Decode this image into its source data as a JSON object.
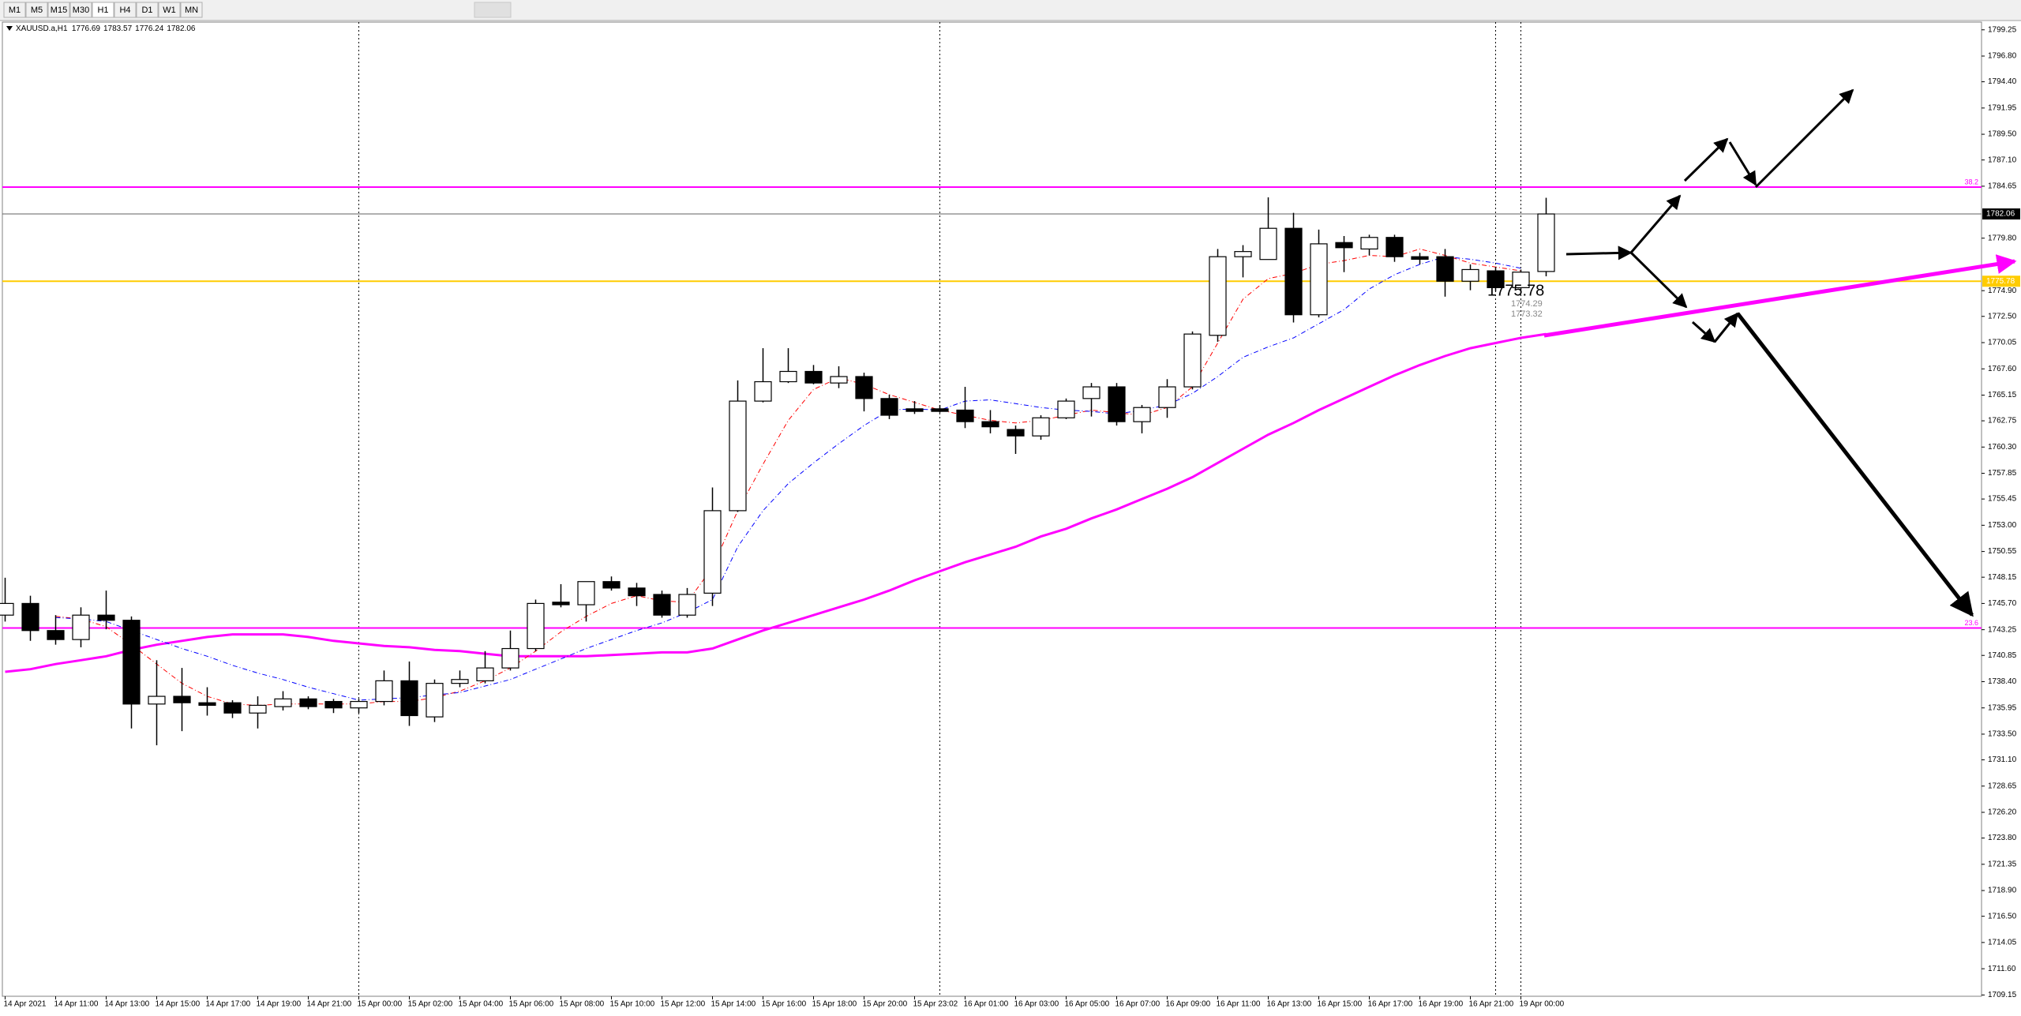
{
  "toolbar": {
    "timeframes": [
      "M1",
      "M5",
      "M15",
      "M30",
      "H1",
      "H4",
      "D1",
      "W1",
      "MN"
    ],
    "active": 4
  },
  "chart_data": {
    "type": "candlestick",
    "symbol": "XAUUSD.a,H1",
    "categories": [
      "14 Apr 2021",
      null,
      "14 Apr 11:00",
      null,
      "14 Apr 13:00",
      null,
      "14 Apr 15:00",
      null,
      "14 Apr 17:00",
      null,
      "14 Apr 19:00",
      null,
      "14 Apr 21:00",
      null,
      "15 Apr 00:00",
      null,
      "15 Apr 02:00",
      null,
      "15 Apr 04:00",
      null,
      "15 Apr 06:00",
      null,
      "15 Apr 08:00",
      null,
      "15 Apr 10:00",
      null,
      "15 Apr 12:00",
      null,
      "15 Apr 14:00",
      null,
      "15 Apr 16:00",
      null,
      "15 Apr 18:00",
      null,
      "15 Apr 20:00",
      null,
      "15 Apr 23:02",
      null,
      "16 Apr 01:00",
      null,
      "16 Apr 03:00",
      null,
      "16 Apr 05:00",
      null,
      "16 Apr 07:00",
      null,
      "16 Apr 09:00",
      null,
      "16 Apr 11:00",
      null,
      "16 Apr 13:00",
      null,
      "16 Apr 15:00",
      null,
      "16 Apr 17:00",
      null,
      "16 Apr 19:00",
      null,
      "16 Apr 21:00",
      null,
      "19 Apr 00:00",
      null
    ],
    "open": [
      1744.61,
      1745.7,
      1743.17,
      1742.33,
      1744.61,
      1744.13,
      1736.31,
      1737.03,
      1736.43,
      1736.43,
      1735.47,
      1736.07,
      1736.79,
      1736.55,
      1735.95,
      1736.55,
      1738.48,
      1735.11,
      1738.24,
      1738.48,
      1739.68,
      1741.49,
      1745.82,
      1745.58,
      1747.74,
      1747.14,
      1746.54,
      1744.61,
      1746.66,
      1754.36,
      1764.59,
      1766.4,
      1767.36,
      1766.28,
      1766.88,
      1764.83,
      1763.87,
      1763.87,
      1763.75,
      1762.67,
      1761.94,
      1761.34,
      1763.03,
      1764.83,
      1765.92,
      1762.67,
      1763.99,
      1765.92,
      1770.73,
      1778.07,
      1777.81,
      1780.72,
      1772.65,
      1779.39,
      1778.79,
      1779.87,
      1778.07,
      1778.07,
      1775.78,
      1776.75,
      1775.18,
      1776.69
    ],
    "high": [
      1748.1,
      1746.42,
      1744.61,
      1745.34,
      1746.9,
      1744.49,
      1740.4,
      1739.68,
      1737.88,
      1736.67,
      1737.03,
      1737.51,
      1737.03,
      1736.79,
      1736.79,
      1739.44,
      1740.28,
      1738.6,
      1739.44,
      1741.25,
      1743.17,
      1746.06,
      1747.5,
      1747.74,
      1748.22,
      1747.62,
      1746.9,
      1747.14,
      1756.53,
      1766.52,
      1769.53,
      1769.53,
      1767.96,
      1767.84,
      1767.24,
      1765.19,
      1764.59,
      1764.23,
      1765.92,
      1763.75,
      1762.31,
      1763.27,
      1764.83,
      1766.28,
      1766.28,
      1764.23,
      1766.64,
      1771.09,
      1778.79,
      1779.15,
      1783.61,
      1782.16,
      1780.6,
      1780.0,
      1780.12,
      1780.12,
      1778.43,
      1778.79,
      1777.35,
      1777.11,
      1776.87,
      1783.57
    ],
    "low": [
      1744.01,
      1742.21,
      1741.85,
      1741.61,
      1743.29,
      1734.03,
      1732.46,
      1733.78,
      1735.23,
      1735.0,
      1734.03,
      1735.71,
      1735.83,
      1735.47,
      1735.47,
      1736.19,
      1734.27,
      1734.63,
      1737.88,
      1738.24,
      1739.44,
      1741.25,
      1745.34,
      1744.01,
      1746.9,
      1745.46,
      1744.37,
      1744.37,
      1745.46,
      1754.24,
      1764.47,
      1766.28,
      1766.16,
      1765.8,
      1763.63,
      1762.91,
      1763.39,
      1763.51,
      1762.07,
      1761.58,
      1759.66,
      1760.98,
      1762.91,
      1763.15,
      1762.31,
      1761.58,
      1763.03,
      1765.68,
      1770.13,
      1776.14,
      1778.07,
      1771.93,
      1772.41,
      1776.63,
      1778.19,
      1777.59,
      1777.35,
      1774.34,
      1774.94,
      1774.82,
      1774.94,
      1776.24
    ],
    "close": [
      1745.7,
      1743.17,
      1742.33,
      1744.61,
      1744.13,
      1736.31,
      1737.03,
      1736.43,
      1736.19,
      1735.47,
      1736.19,
      1736.79,
      1736.07,
      1735.95,
      1736.55,
      1738.48,
      1735.23,
      1738.24,
      1738.6,
      1739.68,
      1741.49,
      1745.7,
      1745.58,
      1747.74,
      1747.14,
      1746.42,
      1744.61,
      1746.54,
      1754.36,
      1764.59,
      1766.4,
      1767.36,
      1766.28,
      1766.88,
      1764.83,
      1763.27,
      1763.63,
      1763.63,
      1762.67,
      1762.19,
      1761.34,
      1763.03,
      1764.59,
      1765.92,
      1762.67,
      1763.99,
      1765.92,
      1770.85,
      1778.07,
      1778.55,
      1780.72,
      1772.65,
      1779.27,
      1778.91,
      1779.87,
      1778.07,
      1777.83,
      1775.78,
      1776.87,
      1775.18,
      1776.63,
      1782.06
    ],
    "bull_color": "#ffffff",
    "bear_color": "#000000",
    "series": [
      {
        "color": "#ff00ff",
        "width": 3,
        "dashed": false,
        "values": [
          1739.32,
          1739.56,
          1740.04,
          1740.4,
          1740.77,
          1741.37,
          1741.85,
          1742.21,
          1742.57,
          1742.81,
          1742.81,
          1742.81,
          1742.57,
          1742.21,
          1741.97,
          1741.73,
          1741.61,
          1741.37,
          1741.25,
          1741.01,
          1740.77,
          1740.77,
          1740.77,
          1740.77,
          1740.89,
          1741.01,
          1741.13,
          1741.13,
          1741.49,
          1742.33,
          1743.17,
          1743.89,
          1744.61,
          1745.34,
          1746.06,
          1746.9,
          1747.86,
          1748.71,
          1749.55,
          1750.27,
          1750.99,
          1751.95,
          1752.67,
          1753.64,
          1754.48,
          1755.45,
          1756.41,
          1757.49,
          1758.82,
          1760.14,
          1761.46,
          1762.55,
          1763.75,
          1764.83,
          1765.92,
          1767.0,
          1767.96,
          1768.8,
          1769.53,
          1770.01,
          1770.49,
          1770.85
        ]
      },
      {
        "color": "#ff0000",
        "width": 1,
        "dashed": true,
        "values": [
          null,
          null,
          1744.5,
          1744.25,
          1743.53,
          1741.85,
          1740.04,
          1738.24,
          1737.03,
          1736.31,
          1736.19,
          1736.31,
          1736.31,
          1736.31,
          1736.31,
          1736.55,
          1736.55,
          1736.91,
          1737.51,
          1738.48,
          1739.68,
          1741.25,
          1743.05,
          1744.49,
          1745.7,
          1746.42,
          1745.94,
          1745.82,
          1749.07,
          1754.36,
          1758.69,
          1762.79,
          1765.68,
          1766.76,
          1766.16,
          1765.19,
          1764.47,
          1763.75,
          1763.27,
          1762.79,
          1762.55,
          1762.79,
          1763.27,
          1763.75,
          1763.51,
          1763.27,
          1763.99,
          1765.92,
          1770.01,
          1774.1,
          1776.03,
          1776.51,
          1777.35,
          1777.71,
          1778.19,
          1778.07,
          1778.79,
          1778.19,
          1777.47,
          1777.11,
          1776.75,
          null
        ]
      },
      {
        "color": "#0000ff",
        "width": 1,
        "dashed": true,
        "values": [
          null,
          null,
          1744.38,
          1744.25,
          1744.01,
          1743.17,
          1742.33,
          1741.49,
          1740.77,
          1739.92,
          1739.2,
          1738.6,
          1737.88,
          1737.28,
          1736.67,
          1736.79,
          1736.91,
          1737.15,
          1737.39,
          1737.99,
          1738.6,
          1739.56,
          1740.52,
          1741.49,
          1742.33,
          1743.17,
          1743.89,
          1744.86,
          1746.06,
          1750.99,
          1754.36,
          1756.89,
          1758.82,
          1760.62,
          1762.31,
          1763.75,
          1763.87,
          1763.75,
          1764.59,
          1764.71,
          1764.35,
          1763.99,
          1763.75,
          1763.63,
          1763.39,
          1763.75,
          1764.23,
          1765.31,
          1766.88,
          1768.68,
          1769.65,
          1770.49,
          1771.81,
          1773.13,
          1775.06,
          1776.39,
          1777.35,
          1778.07,
          1777.83,
          1777.47,
          1776.99,
          null
        ]
      }
    ],
    "levels": [
      {
        "value": 1784.57,
        "label": "38.2",
        "color": "#ff00ff"
      },
      {
        "value": 1743.41,
        "label": "23.6",
        "color": "#ff00ff"
      },
      {
        "value": 1775.78,
        "color": "#ffcc00"
      }
    ],
    "annotations": [
      "1775.78",
      "1774.29",
      "1773.32"
    ],
    "ylim": [
      1709.03,
      1799.97
    ],
    "yticks": [
      1799.25,
      {
        "value": 1796.8,
        "label": "1796.80"
      },
      {
        "value": 1794.4,
        "label": "1794.40"
      },
      1791.95,
      {
        "value": 1789.5,
        "label": "1789.50"
      },
      {
        "value": 1787.1,
        "label": "1787.10"
      },
      1784.65,
      {
        "value": 1779.8,
        "label": "1779.80"
      },
      {
        "value": 1774.9,
        "label": "1774.90"
      },
      {
        "value": 1772.5,
        "label": "1772.50"
      },
      1770.05,
      {
        "value": 1767.6,
        "label": "1767.60"
      },
      1765.15,
      1762.75,
      {
        "value": 1760.3,
        "label": "1760.30"
      },
      1757.85,
      1755.45,
      {
        "value": 1753,
        "label": "1753.00"
      },
      1750.55,
      1748.15,
      {
        "value": 1745.7,
        "label": "1745.70"
      },
      1743.25,
      1740.85,
      {
        "value": 1738.4,
        "label": "1738.40"
      },
      1735.95,
      {
        "value": 1733.5,
        "label": "1733.50"
      },
      {
        "value": 1731.1,
        "label": "1731.10"
      },
      1728.65,
      {
        "value": 1726.2,
        "label": "1726.20"
      },
      {
        "value": 1723.8,
        "label": "1723.80"
      },
      1721.35,
      {
        "value": 1718.9,
        "label": "1718.90"
      },
      {
        "value": 1716.5,
        "label": "1716.50"
      },
      1714.05,
      {
        "value": 1711.6,
        "label": "1711.60"
      },
      1709.15
    ]
  }
}
